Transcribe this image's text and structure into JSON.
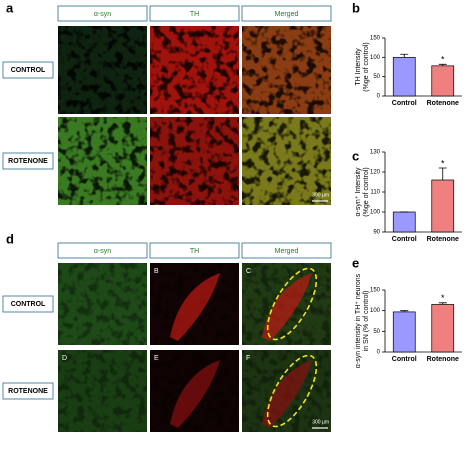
{
  "panel_labels": [
    "a",
    "b",
    "c",
    "d",
    "e"
  ],
  "figure_a": {
    "columns": [
      "α-syn",
      "TH",
      "Merged"
    ],
    "rows": [
      "CONTROL",
      "ROTENONE"
    ],
    "scale_bar": "300 µm"
  },
  "figure_d": {
    "columns": [
      "α-syn",
      "TH",
      "Merged"
    ],
    "rows": [
      "CONTROL",
      "ROTENONE"
    ],
    "image_labels": [
      "B",
      "C",
      "D",
      "E",
      "F"
    ],
    "scale_bar": "300 µm"
  },
  "chart_data": [
    {
      "type": "bar",
      "y_label": [
        "TH Intensity",
        "(%ge of control)"
      ],
      "categories": [
        "Control",
        "Rotenone"
      ],
      "values": [
        100,
        78
      ],
      "errors": [
        8,
        4
      ],
      "colors": [
        "#9999ff",
        "#f08080"
      ],
      "ylim": [
        0,
        150
      ],
      "yticks": [
        0,
        50,
        100,
        150
      ],
      "significance": "*"
    },
    {
      "type": "bar",
      "y_label": [
        "α-syn⁺ Intensity",
        "(%ge of control)"
      ],
      "categories": [
        "Control",
        "Rotenone"
      ],
      "values": [
        100,
        116
      ],
      "errors": [
        0,
        6
      ],
      "colors": [
        "#9999ff",
        "#f08080"
      ],
      "ylim": [
        90,
        130
      ],
      "yticks": [
        90,
        100,
        110,
        120,
        130
      ],
      "significance": "*"
    },
    {
      "type": "bar",
      "y_label": [
        "α-syn intensity in TH⁺ neurons",
        "in SN (% of control)"
      ],
      "categories": [
        "Control",
        "Rotenone"
      ],
      "values": [
        97,
        115
      ],
      "errors": [
        3,
        4
      ],
      "colors": [
        "#9999ff",
        "#f08080"
      ],
      "ylim": [
        0,
        150
      ],
      "yticks": [
        0,
        50,
        100,
        150
      ],
      "significance": "*"
    }
  ]
}
